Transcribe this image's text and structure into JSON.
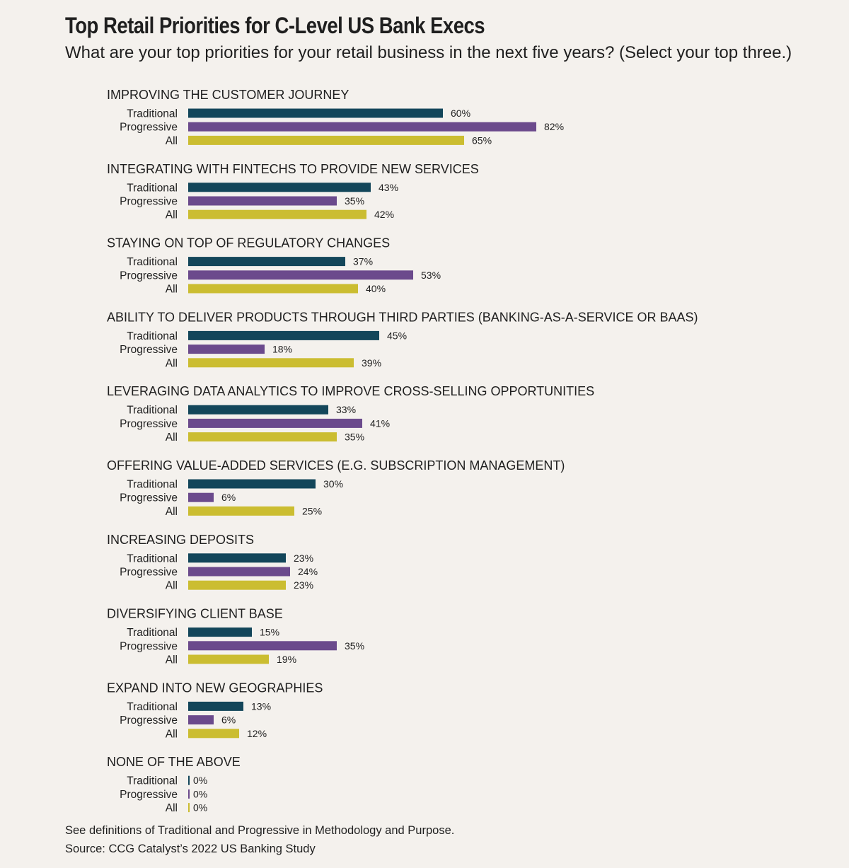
{
  "header": {
    "title": "Top Retail Priorities for C-Level US Bank Execs",
    "subtitle": "What are your top priorities for your retail business in the next five years? (Select your top three.)"
  },
  "footer": {
    "note": "See definitions of Traditional and Progressive in Methodology and Purpose.",
    "source": "Source: CCG Catalyst’s 2022 US Banking Study"
  },
  "chart_data": {
    "type": "bar",
    "orientation": "horizontal",
    "title": "Top Retail Priorities for C-Level US Bank Execs",
    "value_suffix": "%",
    "xlim": [
      0,
      100
    ],
    "grid": false,
    "series": [
      {
        "name": "Traditional",
        "color": "#13465a"
      },
      {
        "name": "Progressive",
        "color": "#6b4a8c"
      },
      {
        "name": "All",
        "color": "#cbbd31"
      }
    ],
    "categories": [
      {
        "label": "IMPROVING THE CUSTOMER JOURNEY",
        "values": [
          60,
          82,
          65
        ]
      },
      {
        "label": "INTEGRATING WITH FINTECHS TO PROVIDE NEW SERVICES",
        "values": [
          43,
          35,
          42
        ]
      },
      {
        "label": "STAYING ON TOP OF REGULATORY CHANGES",
        "values": [
          37,
          53,
          40
        ]
      },
      {
        "label": "ABILITY TO DELIVER PRODUCTS THROUGH THIRD PARTIES (BANKING-AS-A-SERVICE OR BAAS)",
        "values": [
          45,
          18,
          39
        ]
      },
      {
        "label": "LEVERAGING DATA ANALYTICS TO IMPROVE CROSS-SELLING OPPORTUNITIES",
        "values": [
          33,
          41,
          35
        ]
      },
      {
        "label": "OFFERING VALUE-ADDED SERVICES (E.G. SUBSCRIPTION MANAGEMENT)",
        "values": [
          30,
          6,
          25
        ]
      },
      {
        "label": "INCREASING DEPOSITS",
        "values": [
          23,
          24,
          23
        ]
      },
      {
        "label": "DIVERSIFYING CLIENT BASE",
        "values": [
          15,
          35,
          19
        ]
      },
      {
        "label": "EXPAND INTO NEW GEOGRAPHIES",
        "values": [
          13,
          6,
          12
        ]
      },
      {
        "label": "NONE OF THE ABOVE",
        "values": [
          0,
          0,
          0
        ]
      }
    ]
  }
}
